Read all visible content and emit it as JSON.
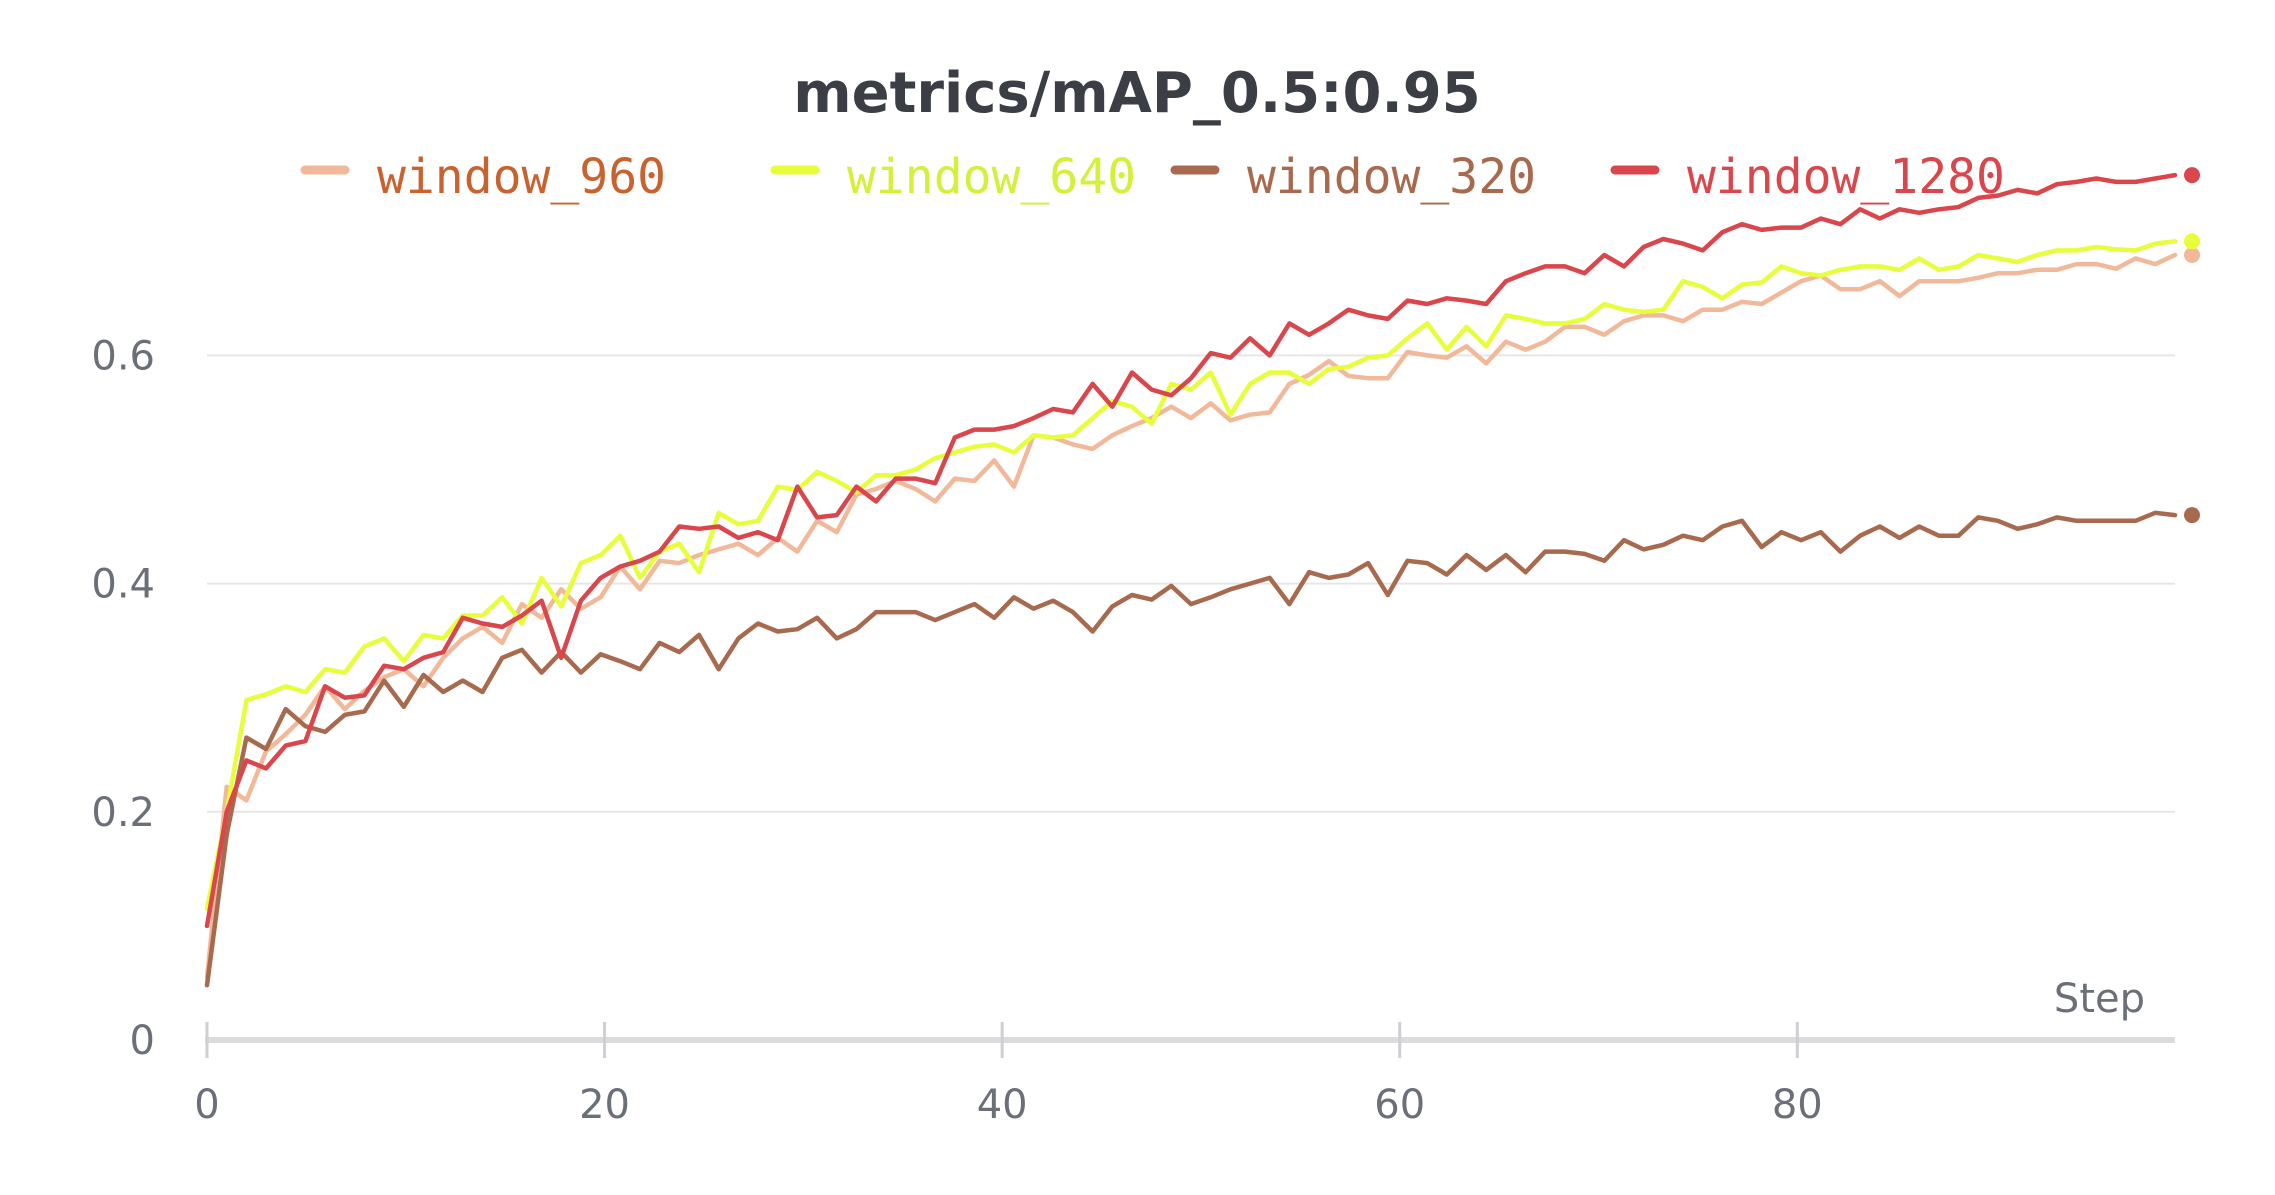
{
  "chart_data": {
    "type": "line",
    "title": "metrics/mAP_0.5:0.95",
    "xlabel": "Step",
    "ylabel": "",
    "xlim": [
      0,
      99
    ],
    "ylim": [
      0,
      0.78
    ],
    "xticks": [
      0,
      20,
      40,
      60,
      80
    ],
    "yticks": [
      0,
      0.2,
      0.4,
      0.6
    ],
    "ytick_labels": [
      "0",
      "0.2",
      "0.4",
      "0.6"
    ],
    "grid": true,
    "legend_position": "top",
    "series": [
      {
        "name": "window_960",
        "color": "#f2b89a",
        "label_color": "#c8622e",
        "values": [
          0.055,
          0.222,
          0.21,
          0.253,
          0.268,
          0.285,
          0.31,
          0.29,
          0.306,
          0.318,
          0.325,
          0.31,
          0.335,
          0.352,
          0.362,
          0.348,
          0.382,
          0.37,
          0.395,
          0.378,
          0.388,
          0.415,
          0.395,
          0.42,
          0.418,
          0.425,
          0.43,
          0.435,
          0.425,
          0.44,
          0.428,
          0.455,
          0.445,
          0.478,
          0.483,
          0.49,
          0.483,
          0.472,
          0.492,
          0.49,
          0.508,
          0.485,
          0.53,
          0.528,
          0.522,
          0.518,
          0.53,
          0.538,
          0.545,
          0.555,
          0.545,
          0.558,
          0.543,
          0.548,
          0.55,
          0.575,
          0.583,
          0.595,
          0.582,
          0.58,
          0.58,
          0.603,
          0.6,
          0.598,
          0.608,
          0.593,
          0.612,
          0.605,
          0.612,
          0.625,
          0.625,
          0.618,
          0.63,
          0.635,
          0.635,
          0.63,
          0.64,
          0.64,
          0.647,
          0.645,
          0.655,
          0.665,
          0.67,
          0.658,
          0.658,
          0.665,
          0.652,
          0.665,
          0.665,
          0.665,
          0.668,
          0.672,
          0.672,
          0.675,
          0.675,
          0.68,
          0.68,
          0.676,
          0.685,
          0.68,
          0.688
        ]
      },
      {
        "name": "window_640",
        "color": "#e6ff3a",
        "label_color": "#d4f03a",
        "values": [
          0.115,
          0.2,
          0.298,
          0.303,
          0.31,
          0.305,
          0.325,
          0.322,
          0.345,
          0.352,
          0.332,
          0.355,
          0.352,
          0.372,
          0.372,
          0.388,
          0.365,
          0.405,
          0.38,
          0.418,
          0.425,
          0.442,
          0.405,
          0.428,
          0.435,
          0.41,
          0.462,
          0.452,
          0.455,
          0.485,
          0.482,
          0.498,
          0.49,
          0.48,
          0.495,
          0.495,
          0.5,
          0.51,
          0.515,
          0.52,
          0.522,
          0.515,
          0.53,
          0.528,
          0.53,
          0.545,
          0.56,
          0.555,
          0.54,
          0.575,
          0.57,
          0.585,
          0.548,
          0.575,
          0.585,
          0.585,
          0.575,
          0.588,
          0.59,
          0.598,
          0.6,
          0.615,
          0.628,
          0.605,
          0.625,
          0.608,
          0.635,
          0.632,
          0.628,
          0.628,
          0.632,
          0.645,
          0.64,
          0.638,
          0.64,
          0.665,
          0.66,
          0.65,
          0.662,
          0.664,
          0.678,
          0.672,
          0.67,
          0.675,
          0.678,
          0.678,
          0.675,
          0.685,
          0.675,
          0.678,
          0.688,
          0.685,
          0.682,
          0.688,
          0.692,
          0.692,
          0.695,
          0.693,
          0.692,
          0.698,
          0.7
        ]
      },
      {
        "name": "window_320",
        "color": "#a86a4e",
        "label_color": "#a86a4e",
        "values": [
          0.048,
          0.18,
          0.265,
          0.255,
          0.29,
          0.275,
          0.27,
          0.285,
          0.288,
          0.315,
          0.292,
          0.32,
          0.305,
          0.315,
          0.305,
          0.335,
          0.342,
          0.322,
          0.34,
          0.322,
          0.338,
          0.332,
          0.325,
          0.348,
          0.34,
          0.355,
          0.325,
          0.352,
          0.365,
          0.358,
          0.36,
          0.37,
          0.352,
          0.36,
          0.375,
          0.375,
          0.375,
          0.368,
          0.375,
          0.382,
          0.37,
          0.388,
          0.378,
          0.385,
          0.375,
          0.358,
          0.38,
          0.39,
          0.386,
          0.398,
          0.382,
          0.388,
          0.395,
          0.4,
          0.405,
          0.382,
          0.41,
          0.405,
          0.408,
          0.418,
          0.39,
          0.42,
          0.418,
          0.408,
          0.425,
          0.412,
          0.425,
          0.41,
          0.428,
          0.428,
          0.426,
          0.42,
          0.438,
          0.43,
          0.434,
          0.442,
          0.438,
          0.45,
          0.455,
          0.432,
          0.445,
          0.438,
          0.445,
          0.428,
          0.442,
          0.45,
          0.44,
          0.45,
          0.442,
          0.442,
          0.458,
          0.455,
          0.448,
          0.452,
          0.458,
          0.455,
          0.455,
          0.455,
          0.455,
          0.462,
          0.46
        ]
      },
      {
        "name": "window_1280",
        "color": "#d9464b",
        "label_color": "#d9464b",
        "values": [
          0.1,
          0.2,
          0.245,
          0.238,
          0.258,
          0.262,
          0.31,
          0.3,
          0.302,
          0.328,
          0.325,
          0.335,
          0.34,
          0.37,
          0.365,
          0.362,
          0.372,
          0.385,
          0.335,
          0.385,
          0.405,
          0.415,
          0.42,
          0.428,
          0.45,
          0.448,
          0.45,
          0.44,
          0.445,
          0.438,
          0.485,
          0.458,
          0.46,
          0.485,
          0.472,
          0.492,
          0.492,
          0.488,
          0.528,
          0.535,
          0.535,
          0.538,
          0.545,
          0.553,
          0.55,
          0.575,
          0.555,
          0.585,
          0.57,
          0.565,
          0.58,
          0.602,
          0.598,
          0.615,
          0.6,
          0.628,
          0.618,
          0.628,
          0.64,
          0.635,
          0.632,
          0.648,
          0.645,
          0.65,
          0.648,
          0.645,
          0.665,
          0.672,
          0.678,
          0.678,
          0.672,
          0.688,
          0.678,
          0.695,
          0.702,
          0.698,
          0.692,
          0.708,
          0.715,
          0.71,
          0.712,
          0.712,
          0.72,
          0.715,
          0.728,
          0.72,
          0.728,
          0.725,
          0.728,
          0.73,
          0.738,
          0.74,
          0.745,
          0.742,
          0.75,
          0.752,
          0.755,
          0.752,
          0.752,
          0.755,
          0.758
        ]
      }
    ]
  }
}
